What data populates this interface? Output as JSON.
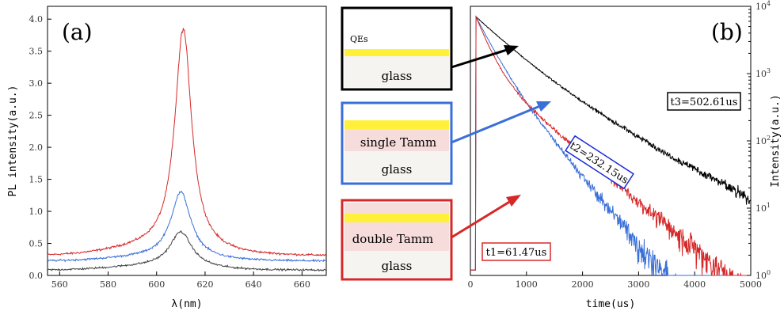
{
  "chart_data": [
    {
      "type": "line",
      "panel_label": "(a)",
      "xlabel": "λ(nm)",
      "ylabel": "PL intensity(a.u.)",
      "xlim": [
        555,
        670
      ],
      "ylim": [
        0,
        4.2
      ],
      "x_ticks": [
        560,
        580,
        600,
        620,
        640,
        660
      ],
      "y_ticks": [
        0.0,
        0.5,
        1.0,
        1.5,
        2.0,
        2.5,
        3.0,
        3.5,
        4.0
      ],
      "grid": false,
      "series": [
        {
          "color": "#d62828",
          "base": 0.3,
          "peak": 3.75,
          "center": 611,
          "width": 4.2
        },
        {
          "color": "#3a6fd8",
          "base": 0.22,
          "peak": 1.25,
          "center": 610,
          "width": 5.0
        },
        {
          "color": "#404040",
          "base": 0.08,
          "peak": 0.63,
          "center": 610,
          "width": 5.5
        }
      ]
    },
    {
      "type": "line",
      "panel_label": "(b)",
      "xlabel": "time(us)",
      "ylabel": "Intensity(a.u.)",
      "xlim": [
        0,
        5000
      ],
      "ylim": [
        1,
        10000
      ],
      "yscale": "log",
      "x_ticks": [
        0,
        1000,
        2000,
        3000,
        4000,
        5000
      ],
      "y_ticks": [
        "10^0",
        "10^1",
        "10^2",
        "10^3",
        "10^4"
      ],
      "grid": false,
      "series": [
        {
          "color": "#000000",
          "label": "t3=502.61us",
          "tau": 502.61,
          "floor": 20
        },
        {
          "color": "#3a6fd8",
          "label": "t2=232.15us",
          "tau": 232.15,
          "floor": 5
        },
        {
          "color": "#d62828",
          "label": "t1=61.47us",
          "tau": 61.47,
          "floor": 1.6
        }
      ]
    }
  ],
  "schematic": {
    "qes_label": "QEs",
    "boxes": [
      {
        "layers": [
          "glass"
        ],
        "border": "#000000"
      },
      {
        "layers": [
          "single Tamm",
          "glass"
        ],
        "border": "#3a6fd8"
      },
      {
        "layers": [
          "double Tamm",
          "glass"
        ],
        "border": "#d62828"
      }
    ]
  }
}
